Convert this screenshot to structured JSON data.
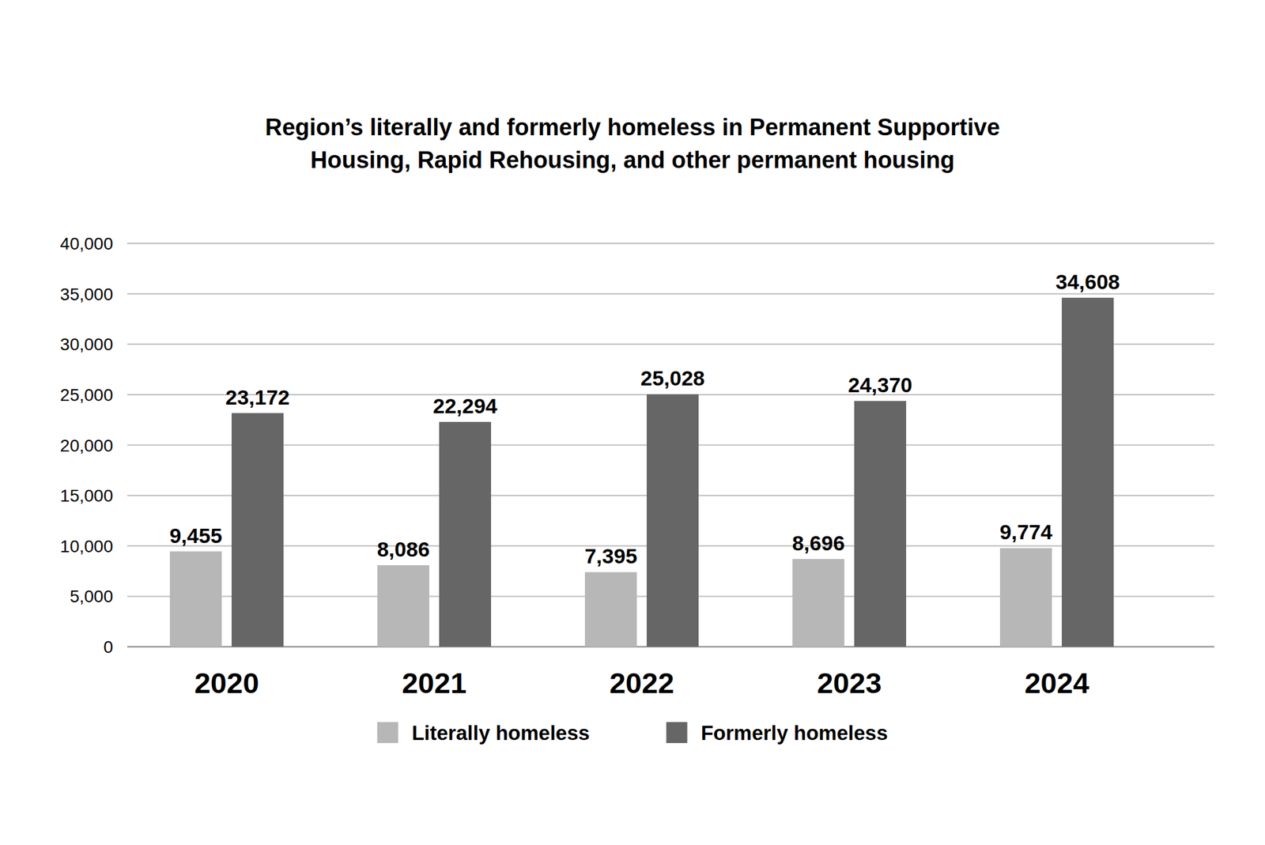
{
  "chart_data": {
    "type": "bar",
    "title": "Region’s literally and formerly homeless in Permanent Supportive Housing, Rapid Rehousing, and other permanent housing",
    "categories": [
      "2020",
      "2021",
      "2022",
      "2023",
      "2024"
    ],
    "series": [
      {
        "name": "Literally homeless",
        "color": "#b7b7b7",
        "values": [
          9455,
          8086,
          7395,
          8696,
          9774
        ],
        "value_labels": [
          "9,455",
          "8,086",
          "7,395",
          "8,696",
          "9,774"
        ]
      },
      {
        "name": "Formerly homeless",
        "color": "#666666",
        "values": [
          23172,
          22294,
          25028,
          24370,
          34608
        ],
        "value_labels": [
          "23,172",
          "22,294",
          "25,028",
          "24,370",
          "34,608"
        ]
      }
    ],
    "ylim": [
      0,
      40000
    ],
    "yticks": [
      0,
      {
        "value": 5000,
        "label": "5,000"
      },
      {
        "value": 10000,
        "label": "10,000"
      },
      {
        "value": 15000,
        "label": "15,000"
      },
      {
        "value": 20000,
        "label": "20,000"
      },
      {
        "value": 25000,
        "label": "25,000"
      },
      {
        "value": 30000,
        "label": "30,000"
      },
      {
        "value": 35000,
        "label": "35,000"
      },
      {
        "value": 40000,
        "label": "40,000"
      }
    ],
    "grid": true,
    "legend": "bottom",
    "data_labels": true
  }
}
